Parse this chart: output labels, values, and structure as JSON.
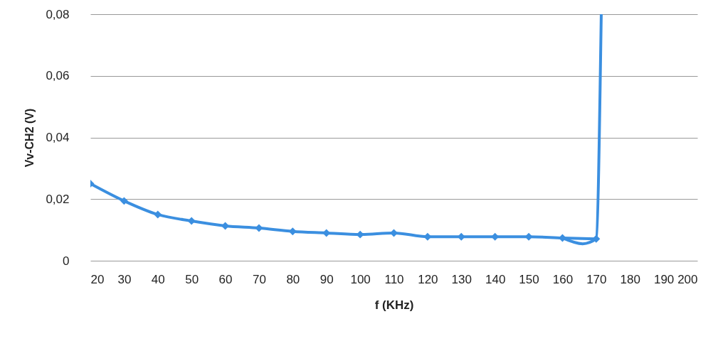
{
  "chart_data": {
    "type": "line",
    "xlabel": "f (KHz)",
    "ylabel": "Vv-CH2  (V)",
    "xlim": [
      20,
      200
    ],
    "xticks": [
      20,
      30,
      40,
      50,
      60,
      70,
      80,
      90,
      100,
      110,
      120,
      130,
      140,
      150,
      160,
      170,
      180,
      190,
      200
    ],
    "ylim": [
      0,
      0.08
    ],
    "yticks": [
      {
        "value": 0,
        "label": "0"
      },
      {
        "value": 0.02,
        "label": "0,02"
      },
      {
        "value": 0.04,
        "label": "0,04"
      },
      {
        "value": 0.06,
        "label": "0,06"
      },
      {
        "value": 0.08,
        "label": "0,08"
      }
    ],
    "grid": "y",
    "marker": "diamond",
    "line_style": "solid",
    "series": [
      {
        "color": "#3b8fe0",
        "x": [
          20,
          30,
          40,
          50,
          60,
          70,
          80,
          90,
          100,
          110,
          120,
          130,
          140,
          150,
          160,
          170
        ],
        "values": [
          0.025,
          0.0194,
          0.015,
          0.0129,
          0.0113,
          0.0106,
          0.0095,
          0.009,
          0.0085,
          0.009,
          0.0078,
          0.0078,
          0.0078,
          0.0078,
          0.0074,
          0.0071
        ]
      },
      {
        "type": "line",
        "marker": "none",
        "color": "#3b8fe0",
        "x": [
          160,
          166,
          170,
          171.5
        ],
        "values": [
          0.0074,
          0.0055,
          0.0071,
          0.08
        ]
      }
    ]
  }
}
